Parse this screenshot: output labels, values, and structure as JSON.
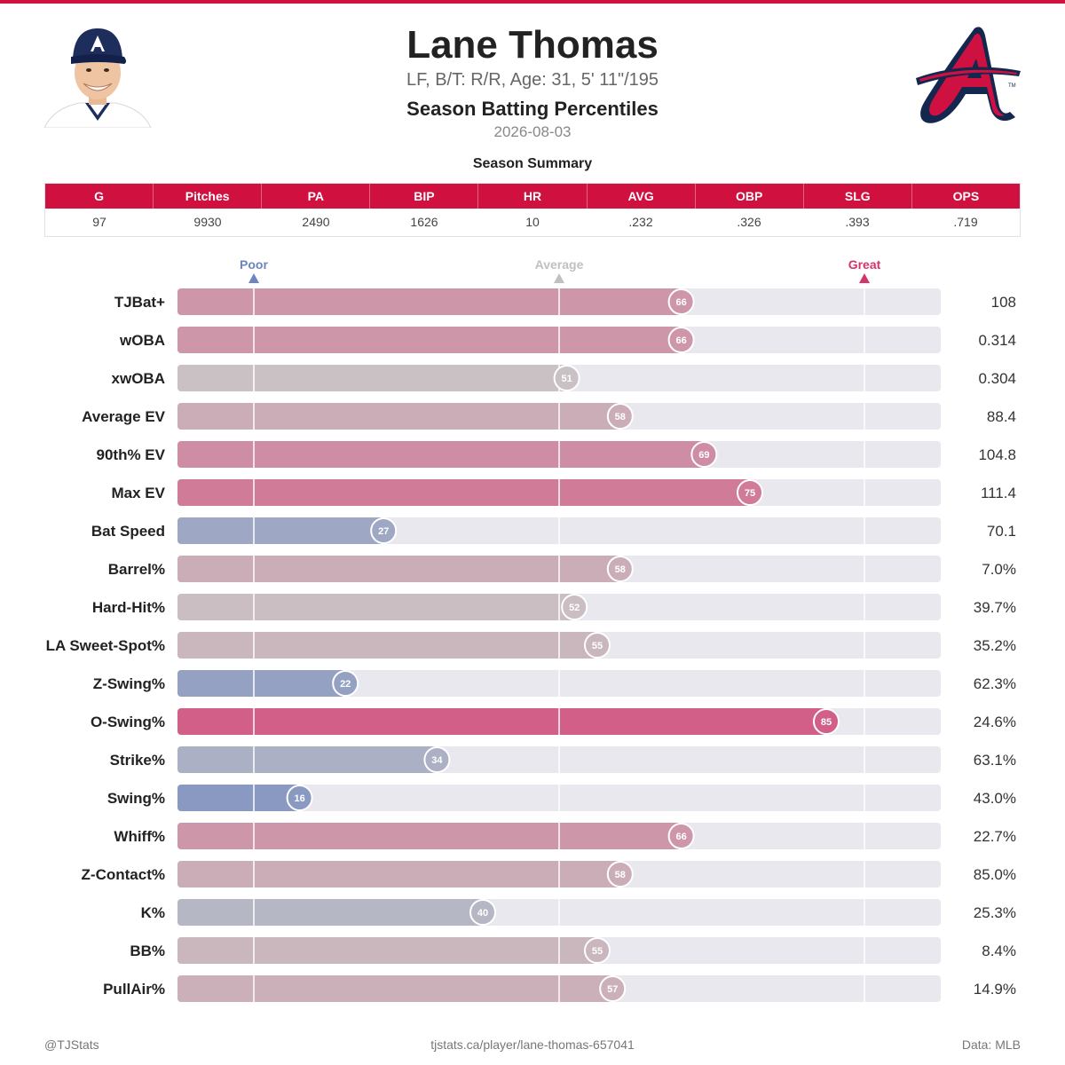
{
  "header": {
    "name": "Lane Thomas",
    "bio": "LF, B/T: R/R, Age: 31, 5' 11\"/195",
    "report_title": "Season Batting Percentiles",
    "date": "2026-08-03"
  },
  "summary": {
    "title": "Season Summary",
    "columns": [
      "G",
      "Pitches",
      "PA",
      "BIP",
      "HR",
      "AVG",
      "OBP",
      "SLG",
      "OPS"
    ],
    "values": [
      "97",
      "9930",
      "2490",
      "1626",
      "10",
      ".232",
      ".326",
      ".393",
      ".719"
    ]
  },
  "chart_data": {
    "type": "bar",
    "orientation": "horizontal",
    "xlim": [
      0,
      100
    ],
    "reference_lines": [
      {
        "label": "Poor",
        "value": 10,
        "color": "#6c85bf"
      },
      {
        "label": "Average",
        "value": 50,
        "color": "#c0c0c0"
      },
      {
        "label": "Great",
        "value": 90,
        "color": "#d6336c"
      }
    ],
    "categories": [
      "TJBat+",
      "wOBA",
      "xwOBA",
      "Average EV",
      "90th% EV",
      "Max EV",
      "Bat Speed",
      "Barrel%",
      "Hard-Hit%",
      "LA Sweet-Spot%",
      "Z-Swing%",
      "O-Swing%",
      "Strike%",
      "Swing%",
      "Whiff%",
      "Z-Contact%",
      "K%",
      "BB%",
      "PullAir%"
    ],
    "percentiles": [
      66,
      66,
      51,
      58,
      69,
      75,
      27,
      58,
      52,
      55,
      22,
      85,
      34,
      16,
      66,
      58,
      40,
      55,
      57
    ],
    "stat_values": [
      "108",
      "0.314",
      "0.304",
      "88.4",
      "104.8",
      "111.4",
      "70.1",
      "7.0%",
      "39.7%",
      "35.2%",
      "62.3%",
      "24.6%",
      "63.1%",
      "43.0%",
      "22.7%",
      "85.0%",
      "25.3%",
      "8.4%",
      "14.9%"
    ],
    "colors": {
      "poor": "#6c85bf",
      "average": "#c9c4c6",
      "great": "#d6336c",
      "track": "#e8e8ee"
    }
  },
  "footer": {
    "handle": "@TJStats",
    "url": "tjstats.ca/player/lane-thomas-657041",
    "source": "Data: MLB"
  }
}
